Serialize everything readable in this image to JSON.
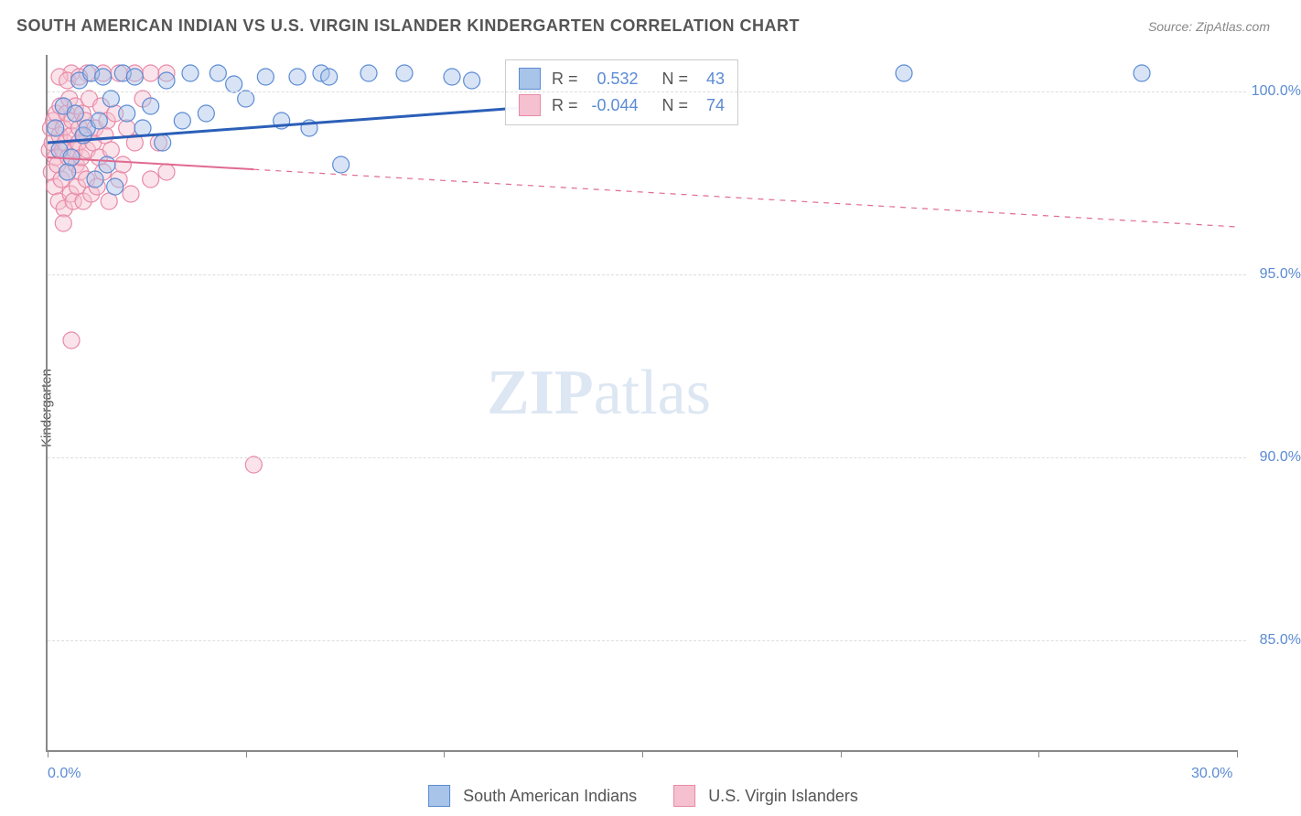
{
  "header": {
    "title": "SOUTH AMERICAN INDIAN VS U.S. VIRGIN ISLANDER KINDERGARTEN CORRELATION CHART",
    "source": "Source: ZipAtlas.com"
  },
  "y_axis_label": "Kindergarten",
  "watermark": {
    "bold": "ZIP",
    "rest": "atlas"
  },
  "chart": {
    "type": "scatter",
    "xlim": [
      0,
      30
    ],
    "ylim": [
      82,
      101
    ],
    "x_ticks": [
      0,
      5,
      10,
      15,
      20,
      25,
      30
    ],
    "x_tick_labels": {
      "0": "0.0%",
      "30": "30.0%"
    },
    "y_ticks": [
      85,
      90,
      95,
      100
    ],
    "y_tick_labels": {
      "85": "85.0%",
      "90": "90.0%",
      "95": "95.0%",
      "100": "100.0%"
    },
    "grid_color": "#dddddd",
    "background_color": "#ffffff",
    "axis_color": "#888888",
    "tick_label_color": "#5b8bd4",
    "tick_label_fontsize": 16,
    "marker_radius": 9,
    "marker_opacity": 0.45,
    "series": [
      {
        "name": "South American Indians",
        "color_stroke": "#5b8bd4",
        "color_fill": "#a8c4e8",
        "R": "0.532",
        "N": "43",
        "trend": {
          "x0": 0,
          "y0": 98.6,
          "x1": 30,
          "y1": 101.0,
          "dashed_after_x": null,
          "stroke_width": 3,
          "color": "#2b5fb8"
        },
        "points": [
          [
            0.2,
            99.0
          ],
          [
            0.3,
            98.4
          ],
          [
            0.4,
            99.6
          ],
          [
            0.5,
            97.8
          ],
          [
            0.6,
            98.2
          ],
          [
            0.7,
            99.4
          ],
          [
            0.8,
            100.3
          ],
          [
            0.9,
            98.8
          ],
          [
            1.0,
            99.0
          ],
          [
            1.1,
            100.5
          ],
          [
            1.2,
            97.6
          ],
          [
            1.3,
            99.2
          ],
          [
            1.4,
            100.4
          ],
          [
            1.5,
            98.0
          ],
          [
            1.6,
            99.8
          ],
          [
            1.7,
            97.4
          ],
          [
            1.9,
            100.5
          ],
          [
            2.0,
            99.4
          ],
          [
            2.2,
            100.4
          ],
          [
            2.4,
            99.0
          ],
          [
            2.6,
            99.6
          ],
          [
            2.9,
            98.6
          ],
          [
            3.0,
            100.3
          ],
          [
            3.4,
            99.2
          ],
          [
            3.6,
            100.5
          ],
          [
            4.0,
            99.4
          ],
          [
            4.3,
            100.5
          ],
          [
            4.7,
            100.2
          ],
          [
            5.0,
            99.8
          ],
          [
            5.5,
            100.4
          ],
          [
            5.9,
            99.2
          ],
          [
            6.3,
            100.4
          ],
          [
            6.6,
            99.0
          ],
          [
            6.9,
            100.5
          ],
          [
            7.1,
            100.4
          ],
          [
            7.4,
            98.0
          ],
          [
            8.1,
            100.5
          ],
          [
            9.0,
            100.5
          ],
          [
            10.2,
            100.4
          ],
          [
            10.7,
            100.3
          ],
          [
            12.3,
            100.2
          ],
          [
            21.6,
            100.5
          ],
          [
            27.6,
            100.5
          ]
        ]
      },
      {
        "name": "U.S. Virgin Islanders",
        "color_stroke": "#e88aa8",
        "color_fill": "#f5c0d0",
        "R": "-0.044",
        "N": "74",
        "trend": {
          "x0": 0,
          "y0": 98.2,
          "x1": 30,
          "y1": 96.3,
          "dashed_after_x": 5.2,
          "stroke_width": 2,
          "color": "#e06a90"
        },
        "points": [
          [
            0.05,
            98.4
          ],
          [
            0.08,
            99.0
          ],
          [
            0.1,
            97.8
          ],
          [
            0.12,
            98.6
          ],
          [
            0.15,
            99.2
          ],
          [
            0.18,
            97.4
          ],
          [
            0.2,
            98.2
          ],
          [
            0.22,
            99.4
          ],
          [
            0.25,
            98.0
          ],
          [
            0.28,
            97.0
          ],
          [
            0.3,
            98.8
          ],
          [
            0.32,
            99.6
          ],
          [
            0.35,
            97.6
          ],
          [
            0.38,
            98.4
          ],
          [
            0.4,
            99.0
          ],
          [
            0.42,
            96.8
          ],
          [
            0.45,
            98.6
          ],
          [
            0.48,
            99.4
          ],
          [
            0.5,
            97.8
          ],
          [
            0.52,
            98.2
          ],
          [
            0.55,
            99.8
          ],
          [
            0.58,
            97.2
          ],
          [
            0.6,
            98.8
          ],
          [
            0.62,
            99.2
          ],
          [
            0.65,
            97.0
          ],
          [
            0.68,
            98.4
          ],
          [
            0.7,
            99.6
          ],
          [
            0.72,
            98.0
          ],
          [
            0.75,
            97.4
          ],
          [
            0.78,
            98.6
          ],
          [
            0.8,
            99.0
          ],
          [
            0.82,
            97.8
          ],
          [
            0.85,
            98.2
          ],
          [
            0.88,
            99.4
          ],
          [
            0.9,
            97.0
          ],
          [
            0.92,
            98.8
          ],
          [
            0.95,
            99.2
          ],
          [
            0.98,
            97.6
          ],
          [
            1.0,
            98.4
          ],
          [
            1.05,
            99.8
          ],
          [
            1.1,
            97.2
          ],
          [
            1.15,
            98.6
          ],
          [
            1.2,
            99.0
          ],
          [
            1.25,
            97.4
          ],
          [
            1.3,
            98.2
          ],
          [
            1.35,
            99.6
          ],
          [
            1.4,
            97.8
          ],
          [
            1.45,
            98.8
          ],
          [
            1.5,
            99.2
          ],
          [
            1.55,
            97.0
          ],
          [
            1.6,
            98.4
          ],
          [
            1.7,
            99.4
          ],
          [
            1.8,
            97.6
          ],
          [
            1.9,
            98.0
          ],
          [
            2.0,
            99.0
          ],
          [
            2.1,
            97.2
          ],
          [
            2.2,
            98.6
          ],
          [
            2.4,
            99.8
          ],
          [
            2.6,
            97.6
          ],
          [
            2.8,
            98.6
          ],
          [
            3.0,
            97.8
          ],
          [
            0.6,
            100.5
          ],
          [
            1.0,
            100.5
          ],
          [
            1.4,
            100.5
          ],
          [
            1.8,
            100.5
          ],
          [
            2.2,
            100.5
          ],
          [
            2.6,
            100.5
          ],
          [
            3.0,
            100.5
          ],
          [
            0.3,
            100.4
          ],
          [
            0.5,
            100.3
          ],
          [
            0.8,
            100.4
          ],
          [
            0.4,
            96.4
          ],
          [
            0.6,
            93.2
          ],
          [
            5.2,
            89.8
          ]
        ]
      }
    ]
  },
  "stats_box": {
    "r_label": "R =",
    "n_label": "N ="
  },
  "legend": {
    "items": [
      "South American Indians",
      "U.S. Virgin Islanders"
    ]
  }
}
